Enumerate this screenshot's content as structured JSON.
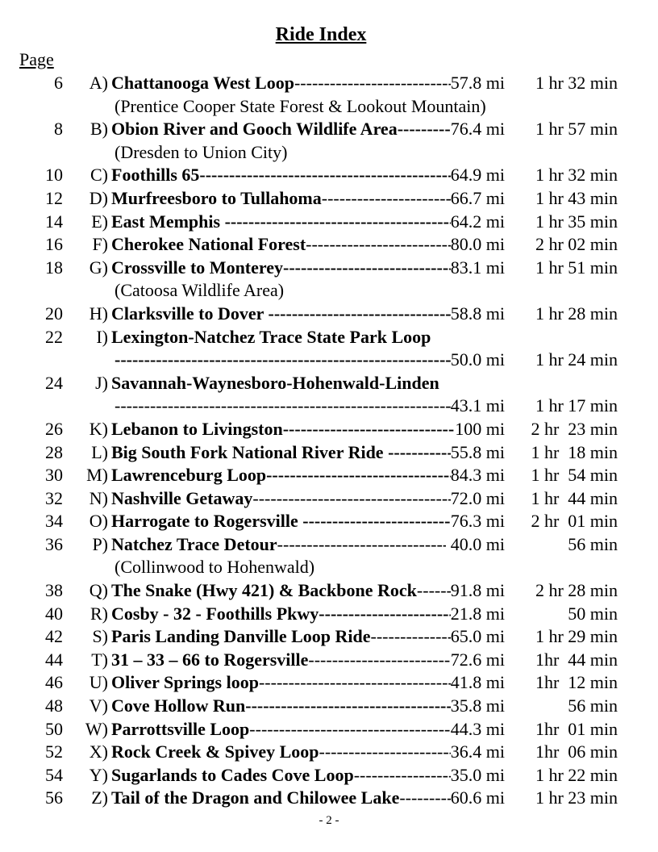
{
  "title": "Ride Index",
  "page_header": "Page",
  "footer": "- 2 -",
  "rides": [
    {
      "page": "6",
      "letter": "A)",
      "name": "Chattanooga West Loop",
      "dist": "57.8 mi",
      "time": "1 hr 32 min",
      "sub": "(Prentice Cooper State Forest & Lookout Mountain)",
      "leader_bold": false,
      "wrap": false
    },
    {
      "page": "8",
      "letter": "B)",
      "name": "Obion River and Gooch Wildlife Area",
      "dist": "76.4 mi",
      "time": "1 hr 57 min",
      "sub": "(Dresden to Union City)",
      "leader_bold": true,
      "wrap": false
    },
    {
      "page": "10",
      "letter": "C)",
      "name": "Foothills 65",
      "dist": "64.9 mi",
      "time": "1 hr 32 min",
      "leader_bold": true,
      "wrap": false
    },
    {
      "page": "12",
      "letter": "D)",
      "name": "Murfreesboro to Tullahoma",
      "dist": "66.7 mi",
      "time": "1 hr 43 min",
      "leader_bold": false,
      "wrap": false
    },
    {
      "page": "14",
      "letter": "E)",
      "name": "East Memphis ",
      "dist": "64.2 mi",
      "time": "1 hr 35 min",
      "leader_bold": true,
      "wrap": false
    },
    {
      "page": "16",
      "letter": "F)",
      "name": "Cherokee National Forest",
      "dist": "80.0 mi",
      "time": "2 hr 02 min",
      "leader_bold": false,
      "wrap": false
    },
    {
      "page": "18",
      "letter": "G)",
      "name": "Crossville to Monterey",
      "dist": "83.1 mi",
      "time": "1 hr 51 min",
      "sub": "(Catoosa Wildlife Area)",
      "leader_bold": true,
      "wrap": false
    },
    {
      "page": "20",
      "letter": "H)",
      "name": "Clarksville to Dover ",
      "dist": "58.8 mi",
      "time": "1 hr 28 min",
      "leader_bold": true,
      "wrap": false
    },
    {
      "page": "22",
      "letter": "I)",
      "name": "Lexington-Natchez Trace State Park Loop",
      "dist": "50.0 mi",
      "time": "1 hr 24 min",
      "leader_bold": true,
      "wrap": true
    },
    {
      "page": "24",
      "letter": "J)",
      "name": "Savannah-Waynesboro-Hohenwald-Linden",
      "dist": "43.1 mi",
      "time": "1 hr 17 min",
      "leader_bold": false,
      "wrap": true
    },
    {
      "page": "26",
      "letter": "K)",
      "name": "Lebanon to Livingston",
      "dist": "100 mi",
      "time": "2 hr  23 min",
      "leader_bold": true,
      "wrap": false
    },
    {
      "page": "28",
      "letter": "L)",
      "name": "Big South Fork National River Ride ",
      "dist": "55.8 mi",
      "time": "1 hr  18 min",
      "leader_bold": true,
      "wrap": false
    },
    {
      "page": "30",
      "letter": "M)",
      "name": "Lawrenceburg Loop",
      "dist": "84.3 mi",
      "time": "1 hr  54 min",
      "leader_bold": true,
      "wrap": false
    },
    {
      "page": "32",
      "letter": "N)",
      "name": "Nashville Getaway",
      "dist": "72.0 mi",
      "time": "1 hr  44 min",
      "leader_bold": false,
      "wrap": false
    },
    {
      "page": "34",
      "letter": "O)",
      "name": "Harrogate to Rogersville ",
      "dist": "76.3 mi",
      "time": "2 hr  01 min",
      "leader_bold": true,
      "wrap": false
    },
    {
      "page": "36",
      "letter": "P)",
      "name": "Natchez Trace Detour",
      "dist": " 40.0 mi",
      "time": "56 min",
      "sub": "(Collinwood to Hohenwald)",
      "leader_bold": false,
      "wrap": false
    },
    {
      "page": "38",
      "letter": "Q)",
      "name": "The Snake (Hwy 421) & Backbone Rock",
      "dist": "91.8 mi",
      "time": "2 hr 28 min",
      "leader_bold": false,
      "wrap": false
    },
    {
      "page": "40",
      "letter": "R)",
      "name": "Cosby - 32 - Foothills Pkwy",
      "dist": "21.8 mi",
      "time": "50 min",
      "leader_bold": true,
      "wrap": false,
      "tail_plain": true
    },
    {
      "page": "42",
      "letter": "S)",
      "name": "Paris Landing Danville Loop Ride",
      "dist": "65.0 mi",
      "time": "1 hr 29 min",
      "leader_bold": false,
      "wrap": false
    },
    {
      "page": "44",
      "letter": "T)",
      "name": "31 – 33 – 66 to Rogersville",
      "dist": "72.6 mi",
      "time": "1hr  44 min",
      "leader_bold": false,
      "wrap": false
    },
    {
      "page": "46",
      "letter": "U)",
      "name": "Oliver Springs loop",
      "dist": "41.8 mi",
      "time": "1hr  12 min",
      "leader_bold": false,
      "wrap": false
    },
    {
      "page": "48",
      "letter": "V)",
      "name": "Cove Hollow Run",
      "dist": "35.8 mi",
      "time": "56 min",
      "leader_bold": true,
      "wrap": false
    },
    {
      "page": "50",
      "letter": "W)",
      "name": "Parrottsville Loop",
      "dist": "44.3 mi",
      "time": "1hr  01 min",
      "leader_bold": false,
      "wrap": false
    },
    {
      "page": "52",
      "letter": "X)",
      "name": "Rock Creek & Spivey Loop",
      "dist": "36.4 mi",
      "time": "1hr  06 min",
      "leader_bold": false,
      "wrap": false
    },
    {
      "page": "54",
      "letter": "Y)",
      "name": "Sugarlands to Cades Cove Loop",
      "dist": "35.0 mi",
      "time": "1 hr 22 min",
      "leader_bold": false,
      "wrap": false
    },
    {
      "page": "56",
      "letter": "Z)",
      "name": "Tail of the Dragon and Chilowee Lake",
      "dist": "60.6 mi",
      "time": "1 hr 23 min",
      "leader_bold": false,
      "wrap": false
    }
  ]
}
